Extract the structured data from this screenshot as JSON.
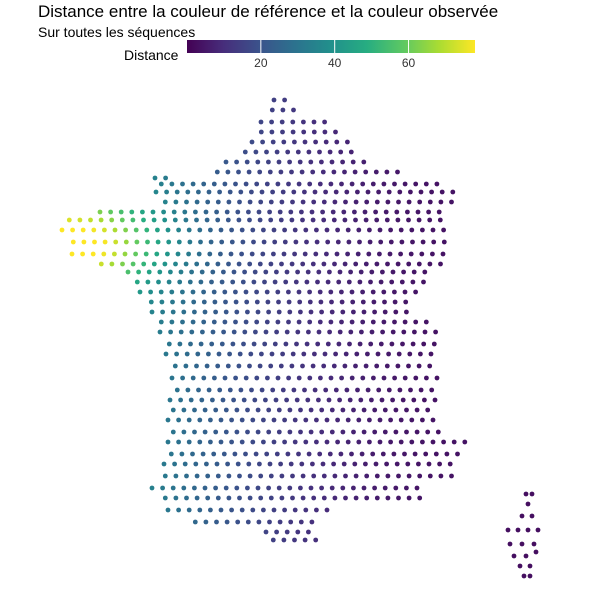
{
  "title": "Distance entre la couleur de référence et la couleur observée",
  "subtitle": "Sur toutes les séquences",
  "legend": {
    "title": "Distance",
    "min": 0,
    "max": 78,
    "ticks": [
      {
        "value": 20,
        "label": "20"
      },
      {
        "value": 40,
        "label": "40"
      },
      {
        "value": 60,
        "label": "60"
      }
    ],
    "colormap": "viridis",
    "colors": [
      "#440154",
      "#3b528b",
      "#21908c",
      "#5dc863",
      "#fde725"
    ]
  },
  "chart_data": {
    "type": "scatter",
    "description_unit": "points on a regular lon/lat grid over mainland France and Corsica, color = distance",
    "color_scale": "viridis",
    "value_range": [
      0,
      78
    ]
  }
}
